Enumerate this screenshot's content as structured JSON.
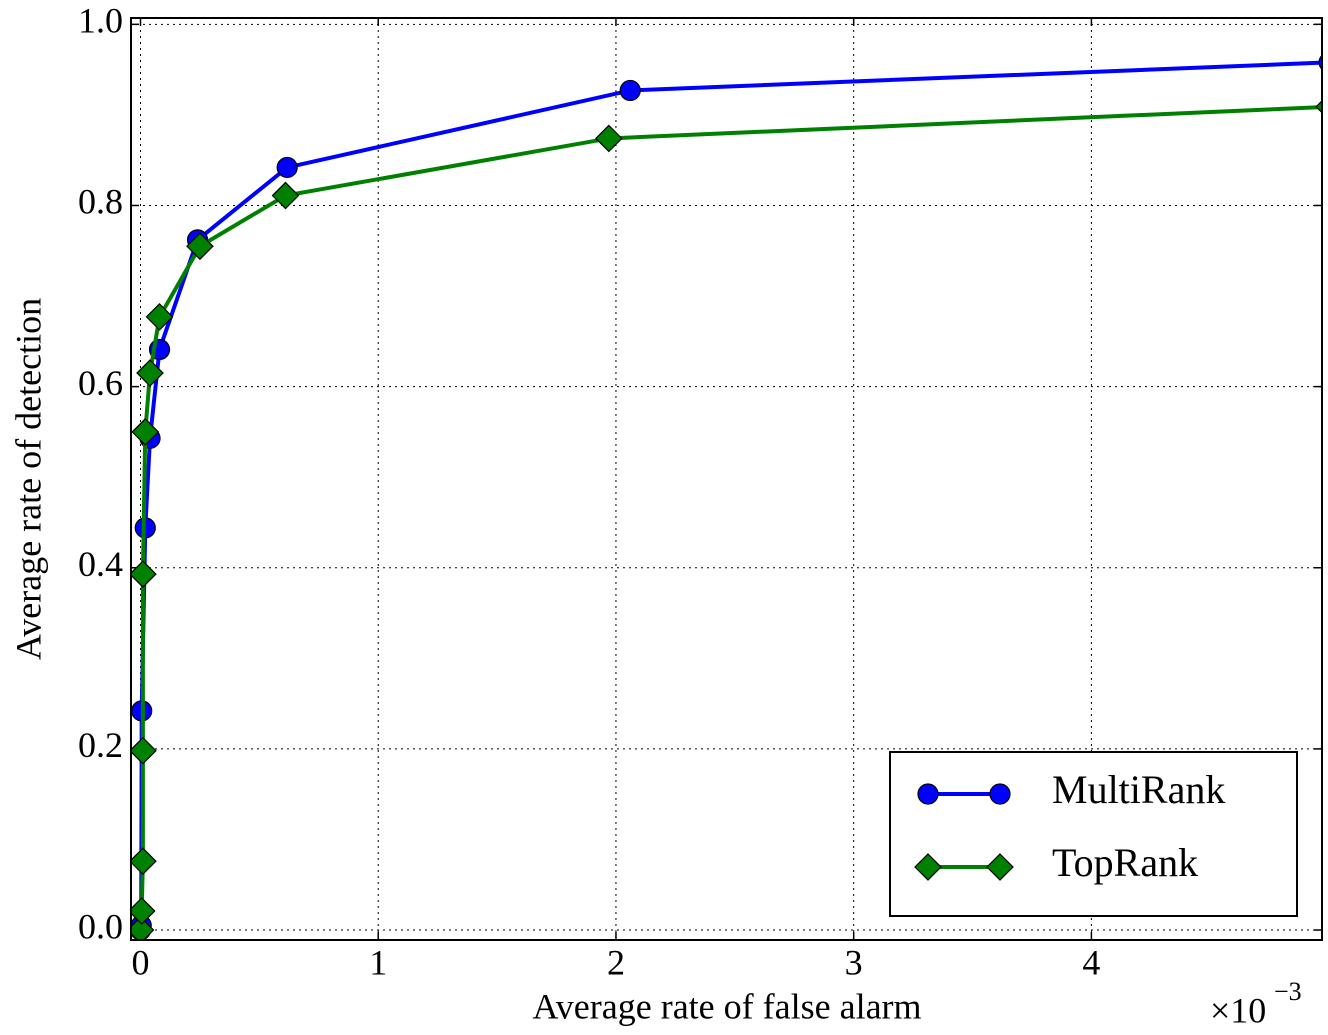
{
  "chart_data": {
    "type": "line",
    "xlabel": "Average rate of false alarm",
    "ylabel": "Average rate of detection",
    "x_multiplier": {
      "base": "×10",
      "exponent": "−3"
    },
    "xlim": [
      -0.04,
      4.97
    ],
    "ylim": [
      -0.011,
      1.007
    ],
    "xticks": [
      0,
      1,
      2,
      3,
      4
    ],
    "yticks": [
      {
        "value": 0,
        "label": "0.0"
      },
      {
        "value": 0.2,
        "label": "0.2"
      },
      {
        "value": 0.4,
        "label": "0.4"
      },
      {
        "value": 0.6,
        "label": "0.6"
      },
      {
        "value": 0.8,
        "label": "0.8"
      },
      {
        "value": 1.0,
        "label": "1.0"
      }
    ],
    "grid": true,
    "legend": "lower right",
    "series": [
      {
        "name": "MultiRank",
        "color": "#0000ff",
        "marker": "circle",
        "x": [
          0,
          0.003,
          0.005,
          0.02,
          0.04,
          0.08,
          0.24,
          0.617,
          2.06,
          5.0
        ],
        "values": [
          0,
          0.005,
          0.242,
          0.444,
          0.543,
          0.641,
          0.762,
          0.842,
          0.927,
          0.958
        ]
      },
      {
        "name": "TopRank",
        "color": "#008000",
        "marker": "diamond",
        "x": [
          0,
          0.005,
          0.01,
          0.01,
          0.01,
          0.02,
          0.04,
          0.08,
          0.25,
          0.61,
          1.97,
          5.0
        ],
        "values": [
          0,
          0.021,
          0.076,
          0.198,
          0.393,
          0.55,
          0.615,
          0.677,
          0.755,
          0.811,
          0.874,
          0.909
        ]
      }
    ]
  }
}
